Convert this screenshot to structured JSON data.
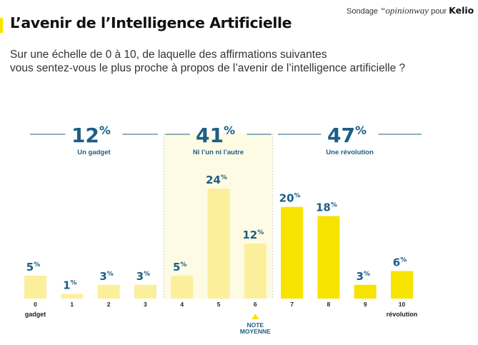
{
  "header": {
    "title": "L’avenir de l’Intelligence Artificielle",
    "sponsor_prefix": "Sondage",
    "sponsor_pollster": "“opinionway",
    "sponsor_mid": "pour",
    "sponsor_brand": "Kelio"
  },
  "question": {
    "line1": "Sur une échelle de 0 à 10, de laquelle des affirmations suivantes",
    "line2": "vous sentez-vous le plus proche à propos de l’avenir de l’intelligence artificielle ?"
  },
  "colors": {
    "pale_bar": "#fbef9c",
    "bright_bar": "#f7e300",
    "accent": "#1d5f86",
    "highlight_bg": "#fdfbe4"
  },
  "chart_data": {
    "type": "bar",
    "categories": [
      "0",
      "1",
      "2",
      "3",
      "4",
      "5",
      "6",
      "7",
      "8",
      "9",
      "10"
    ],
    "values": [
      5,
      1,
      3,
      3,
      5,
      24,
      12,
      20,
      18,
      3,
      6
    ],
    "value_labels": [
      "5%",
      "1%",
      "3%",
      "3%",
      "5%",
      "24%",
      "12%",
      "20%",
      "18%",
      "3%",
      "6%"
    ],
    "groups": [
      {
        "label": "Un gadget",
        "value": 12,
        "value_label": "12%",
        "categories": [
          "0",
          "1",
          "2",
          "3"
        ]
      },
      {
        "label": "Ni l’un ni l’autre",
        "value": 41,
        "value_label": "41%",
        "categories": [
          "4",
          "5",
          "6"
        ]
      },
      {
        "label": "Une révolution",
        "value": 47,
        "value_label": "47%",
        "categories": [
          "7",
          "8",
          "9",
          "10"
        ]
      }
    ],
    "end_labels": {
      "left": "gadget",
      "right": "révolution"
    },
    "annotation": {
      "category": "6",
      "line1": "NOTE",
      "line2": "MOYENNE"
    },
    "ylim": [
      0,
      24
    ],
    "legend": "none",
    "grid": false
  }
}
